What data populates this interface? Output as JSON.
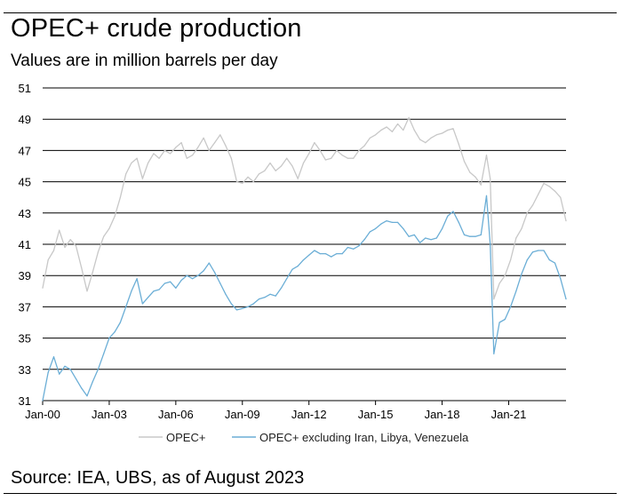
{
  "title": "OPEC+ crude production",
  "subtitle": "Values are in million barrels per day",
  "source": "Source: IEA, UBS, as of August 2023",
  "chart_data": {
    "type": "line",
    "title": "OPEC+ crude production",
    "ylabel": "",
    "xlabel": "",
    "ylim": [
      31,
      51
    ],
    "xlim": [
      "2000-01",
      "2023-08"
    ],
    "yticks": [
      31,
      33,
      35,
      37,
      39,
      41,
      43,
      45,
      47,
      49,
      51
    ],
    "xticks": [
      "Jan-00",
      "Jan-03",
      "Jan-06",
      "Jan-09",
      "Jan-12",
      "Jan-15",
      "Jan-18",
      "Jan-21"
    ],
    "xtick_dates": [
      "2000-01",
      "2003-01",
      "2006-01",
      "2009-01",
      "2012-01",
      "2015-01",
      "2018-01",
      "2021-01"
    ],
    "grid": "horizontal",
    "legend": "bottom",
    "series": [
      {
        "name": "OPEC+",
        "color": "#c8c8c8",
        "x": [
          "2000-01",
          "2000-04",
          "2000-07",
          "2000-10",
          "2001-01",
          "2001-04",
          "2001-07",
          "2001-10",
          "2002-01",
          "2002-04",
          "2002-07",
          "2002-10",
          "2003-01",
          "2003-04",
          "2003-07",
          "2003-10",
          "2004-01",
          "2004-04",
          "2004-07",
          "2004-10",
          "2005-01",
          "2005-04",
          "2005-07",
          "2005-10",
          "2006-01",
          "2006-04",
          "2006-07",
          "2006-10",
          "2007-01",
          "2007-04",
          "2007-07",
          "2007-10",
          "2008-01",
          "2008-04",
          "2008-07",
          "2008-10",
          "2009-01",
          "2009-04",
          "2009-07",
          "2009-10",
          "2010-01",
          "2010-04",
          "2010-07",
          "2010-10",
          "2011-01",
          "2011-04",
          "2011-07",
          "2011-10",
          "2012-01",
          "2012-04",
          "2012-07",
          "2012-10",
          "2013-01",
          "2013-04",
          "2013-07",
          "2013-10",
          "2014-01",
          "2014-04",
          "2014-07",
          "2014-10",
          "2015-01",
          "2015-04",
          "2015-07",
          "2015-10",
          "2016-01",
          "2016-04",
          "2016-07",
          "2016-10",
          "2017-01",
          "2017-04",
          "2017-07",
          "2017-10",
          "2018-01",
          "2018-04",
          "2018-07",
          "2018-10",
          "2019-01",
          "2019-04",
          "2019-07",
          "2019-10",
          "2020-01",
          "2020-03",
          "2020-05",
          "2020-08",
          "2020-11",
          "2021-02",
          "2021-05",
          "2021-08",
          "2021-11",
          "2022-02",
          "2022-05",
          "2022-08",
          "2022-11",
          "2023-02",
          "2023-05",
          "2023-08"
        ],
        "values": [
          38.2,
          40.0,
          40.6,
          41.9,
          40.8,
          41.3,
          40.9,
          39.5,
          38.0,
          39.2,
          40.5,
          41.5,
          42.0,
          42.8,
          44.0,
          45.5,
          46.2,
          46.5,
          45.2,
          46.2,
          46.8,
          46.5,
          47.0,
          46.8,
          47.2,
          47.5,
          46.5,
          46.7,
          47.2,
          47.8,
          47.0,
          47.5,
          48.0,
          47.3,
          46.5,
          45.0,
          44.9,
          45.3,
          45.0,
          45.5,
          45.7,
          46.2,
          45.7,
          46.0,
          46.5,
          46.0,
          45.2,
          46.2,
          46.8,
          47.5,
          47.0,
          46.4,
          46.5,
          47.0,
          46.7,
          46.5,
          46.5,
          47.0,
          47.3,
          47.8,
          48.0,
          48.3,
          48.5,
          48.2,
          48.7,
          48.3,
          49.1,
          48.3,
          47.7,
          47.5,
          47.8,
          48.0,
          48.1,
          48.3,
          48.4,
          47.4,
          46.3,
          45.6,
          45.3,
          44.8,
          46.7,
          45.2,
          37.5,
          38.5,
          39.0,
          40.0,
          41.4,
          42.0,
          43.0,
          43.5,
          44.2,
          44.9,
          44.7,
          44.4,
          44.0,
          42.5
        ]
      },
      {
        "name": "OPEC+ excluding Iran, Libya, Venezuela",
        "color": "#6baed6",
        "x": [
          "2000-01",
          "2000-04",
          "2000-07",
          "2000-10",
          "2001-01",
          "2001-04",
          "2001-07",
          "2001-10",
          "2002-01",
          "2002-04",
          "2002-07",
          "2002-10",
          "2003-01",
          "2003-04",
          "2003-07",
          "2003-10",
          "2004-01",
          "2004-04",
          "2004-07",
          "2004-10",
          "2005-01",
          "2005-04",
          "2005-07",
          "2005-10",
          "2006-01",
          "2006-04",
          "2006-07",
          "2006-10",
          "2007-01",
          "2007-04",
          "2007-07",
          "2007-10",
          "2008-01",
          "2008-04",
          "2008-07",
          "2008-10",
          "2009-01",
          "2009-04",
          "2009-07",
          "2009-10",
          "2010-01",
          "2010-04",
          "2010-07",
          "2010-10",
          "2011-01",
          "2011-04",
          "2011-07",
          "2011-10",
          "2012-01",
          "2012-04",
          "2012-07",
          "2012-10",
          "2013-01",
          "2013-04",
          "2013-07",
          "2013-10",
          "2014-01",
          "2014-04",
          "2014-07",
          "2014-10",
          "2015-01",
          "2015-04",
          "2015-07",
          "2015-10",
          "2016-01",
          "2016-04",
          "2016-07",
          "2016-10",
          "2017-01",
          "2017-04",
          "2017-07",
          "2017-10",
          "2018-01",
          "2018-04",
          "2018-07",
          "2018-10",
          "2019-01",
          "2019-04",
          "2019-07",
          "2019-10",
          "2020-01",
          "2020-03",
          "2020-05",
          "2020-08",
          "2020-11",
          "2021-02",
          "2021-05",
          "2021-08",
          "2021-11",
          "2022-02",
          "2022-05",
          "2022-08",
          "2022-11",
          "2023-02",
          "2023-05",
          "2023-08"
        ],
        "values": [
          31.0,
          32.8,
          33.8,
          32.7,
          33.2,
          33.0,
          32.4,
          31.8,
          31.3,
          32.2,
          33.0,
          34.0,
          35.0,
          35.4,
          36.0,
          37.0,
          38.0,
          38.8,
          37.2,
          37.6,
          38.0,
          38.1,
          38.5,
          38.6,
          38.2,
          38.7,
          39.0,
          38.8,
          39.0,
          39.3,
          39.8,
          39.2,
          38.5,
          37.8,
          37.2,
          36.8,
          36.9,
          37.0,
          37.2,
          37.5,
          37.6,
          37.8,
          37.7,
          38.2,
          38.8,
          39.4,
          39.6,
          40.0,
          40.3,
          40.6,
          40.4,
          40.4,
          40.2,
          40.4,
          40.4,
          40.8,
          40.7,
          40.9,
          41.3,
          41.8,
          42.0,
          42.3,
          42.5,
          42.4,
          42.4,
          42.0,
          41.5,
          41.6,
          41.1,
          41.4,
          41.3,
          41.4,
          42.0,
          42.8,
          43.1,
          42.4,
          41.6,
          41.5,
          41.5,
          41.6,
          44.1,
          41.0,
          34.0,
          36.0,
          36.2,
          37.0,
          38.0,
          39.1,
          40.0,
          40.5,
          40.6,
          40.6,
          40.0,
          39.8,
          38.8,
          37.5
        ]
      }
    ]
  }
}
